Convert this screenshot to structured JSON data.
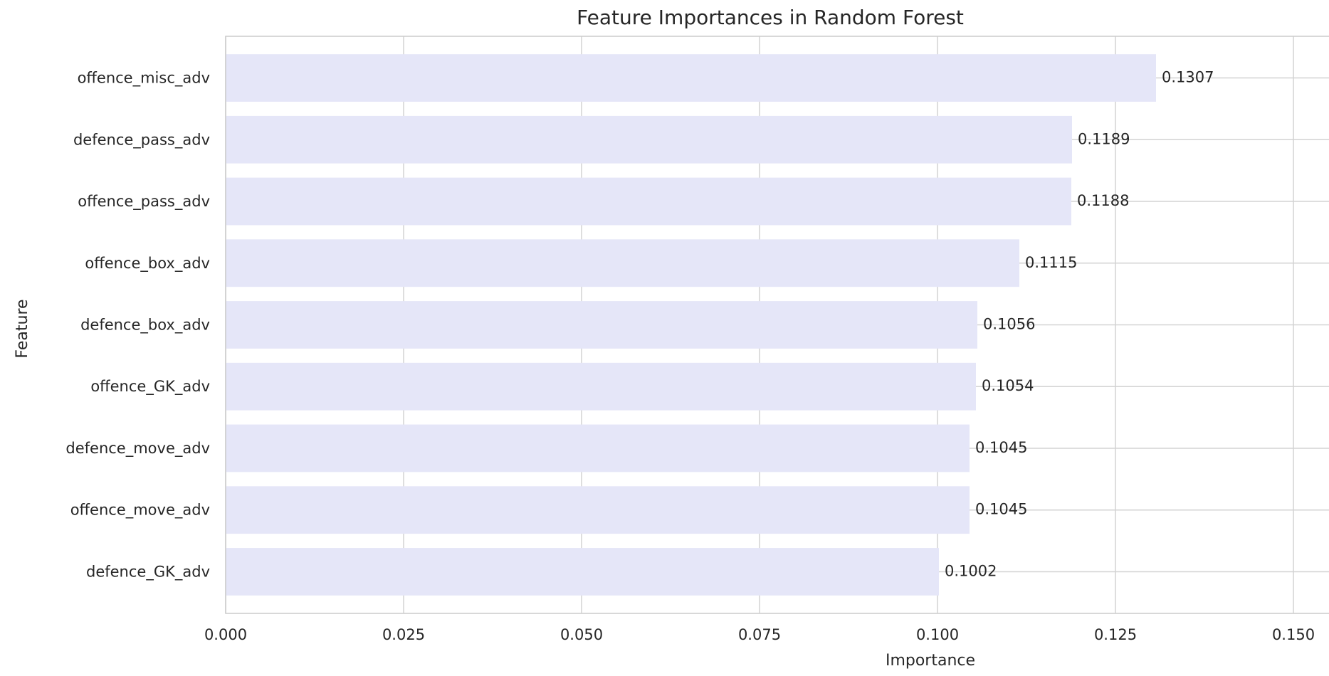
{
  "chart_data": {
    "type": "bar",
    "orientation": "horizontal",
    "title": "Feature Importances in Random Forest",
    "xlabel": "Importance",
    "ylabel": "Feature",
    "categories": [
      "offence_misc_adv",
      "defence_pass_adv",
      "offence_pass_adv",
      "offence_box_adv",
      "defence_box_adv",
      "offence_GK_adv",
      "defence_move_adv",
      "offence_move_adv",
      "defence_GK_adv"
    ],
    "values": [
      0.1307,
      0.1189,
      0.1188,
      0.1115,
      0.1056,
      0.1054,
      0.1045,
      0.1045,
      0.1002
    ],
    "data_labels": [
      "0.1307",
      "0.1189",
      "0.1188",
      "0.1115",
      "0.1056",
      "0.1054",
      "0.1045",
      "0.1045",
      "0.1002"
    ],
    "xlim": [
      0,
      0.155
    ],
    "xticks": [
      0.0,
      0.025,
      0.05,
      0.075,
      0.1,
      0.125,
      0.15
    ],
    "xtick_labels": [
      "0.000",
      "0.025",
      "0.050",
      "0.075",
      "0.100",
      "0.125",
      "0.150"
    ],
    "grid": true,
    "legend": "none",
    "bar_color": "#e5e6f8",
    "grid_color": "#d3d3d3",
    "frame_color": "#cccccc",
    "text_color": "#262626"
  }
}
